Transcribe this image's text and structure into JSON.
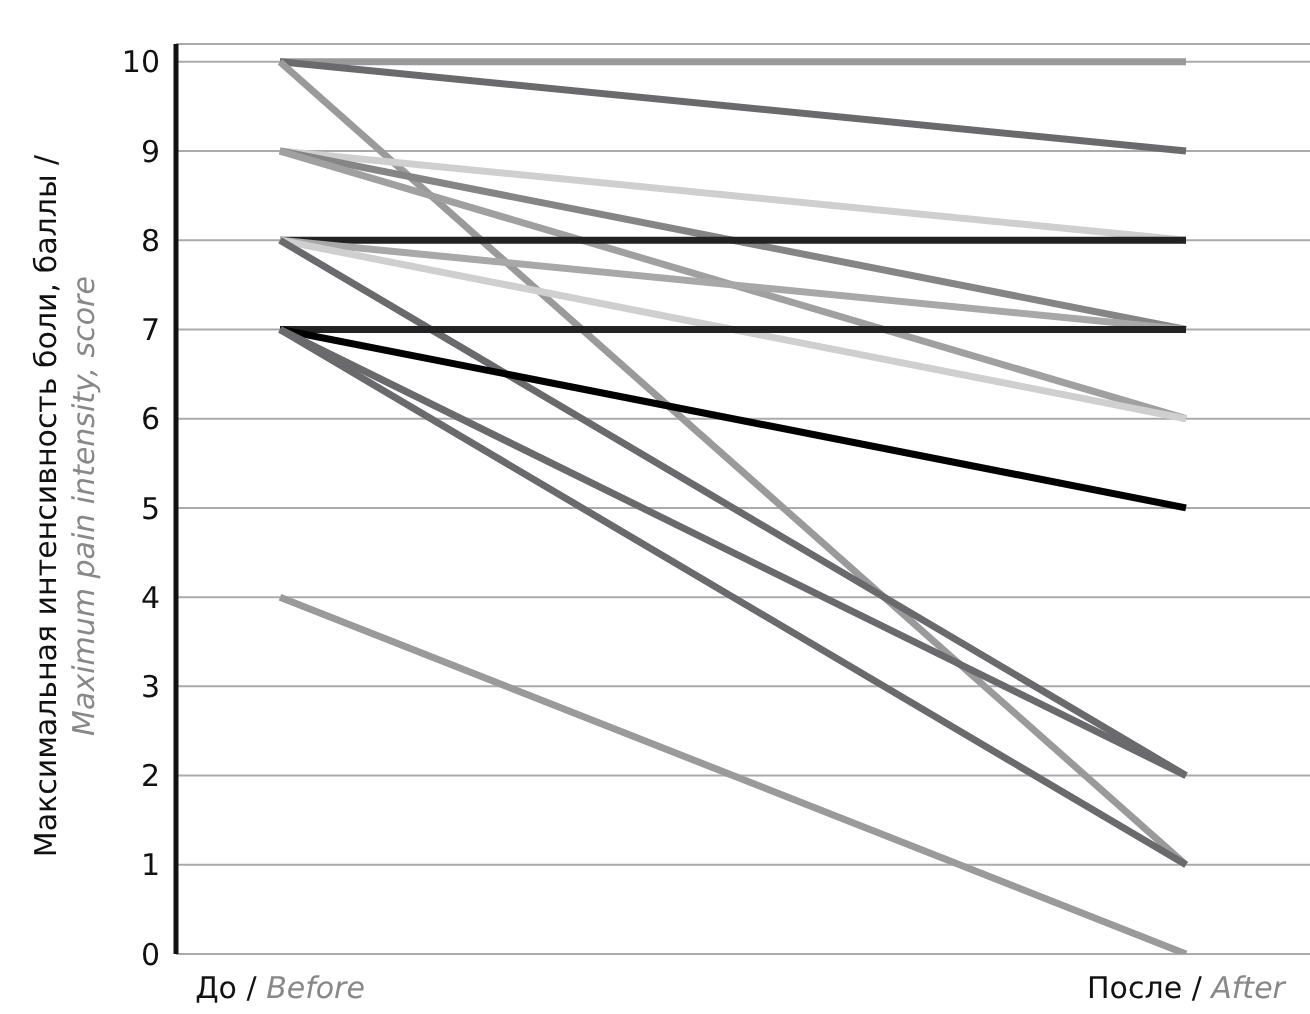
{
  "chart_data": {
    "type": "line",
    "ylabel": "Максимальная интенсивность боли, баллы / Maximum pain intensity, score",
    "categories": [
      "До / Before",
      "После / After"
    ],
    "series": [
      {
        "color": "#9a9a9a",
        "values": [
          10,
          10
        ]
      },
      {
        "color": "#6a6a6d",
        "values": [
          10,
          9
        ]
      },
      {
        "color": "#9a9a9a",
        "values": [
          10,
          1
        ]
      },
      {
        "color": "#cfcfcf",
        "values": [
          9,
          8
        ]
      },
      {
        "color": "#858585",
        "values": [
          9,
          7
        ]
      },
      {
        "color": "#a0a0a0",
        "values": [
          9,
          6
        ]
      },
      {
        "color": "#222222",
        "values": [
          8,
          8
        ]
      },
      {
        "color": "#a8a8a8",
        "values": [
          8,
          7
        ]
      },
      {
        "color": "#cfcfcf",
        "values": [
          8,
          6
        ]
      },
      {
        "color": "#6a6a6d",
        "values": [
          8,
          2
        ]
      },
      {
        "color": "#222222",
        "values": [
          7,
          7
        ]
      },
      {
        "color": "#000000",
        "values": [
          7,
          5
        ]
      },
      {
        "color": "#6a6a6d",
        "values": [
          7,
          2
        ]
      },
      {
        "color": "#6a6a6d",
        "values": [
          7,
          1
        ]
      },
      {
        "color": "#9a9a9a",
        "values": [
          4,
          0
        ]
      }
    ],
    "ylim": [
      0,
      10.2
    ],
    "yticks": [
      0,
      1,
      2,
      3,
      4,
      5,
      6,
      7,
      8,
      9,
      10
    ],
    "grid": "y",
    "legend": false
  }
}
